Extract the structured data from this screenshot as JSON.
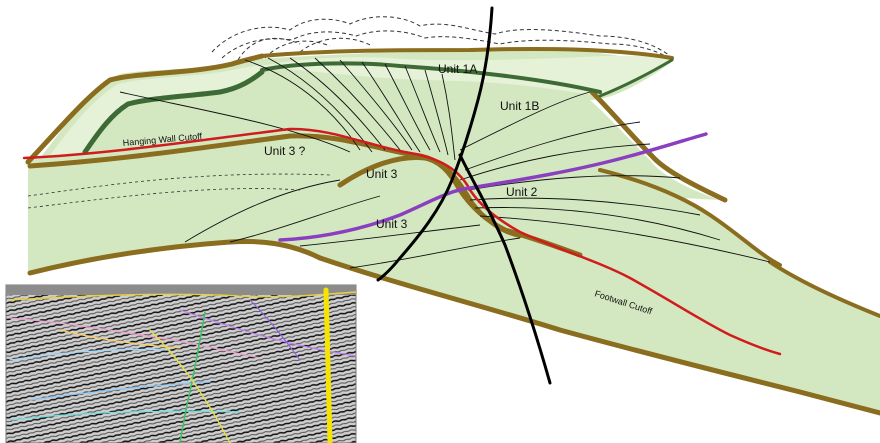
{
  "labels": {
    "unit_1a": "Unit 1A",
    "unit_1b": "Unit 1B",
    "unit_3_query": "Unit 3 ?",
    "unit_3_upper": "Unit 3",
    "unit_3_lower": "Unit 3",
    "unit_2": "Unit 2",
    "hanging_wall_cutoff": "Hanging Wall Cutoff",
    "footwall_cutoff": "Footwall Cutoff"
  },
  "colors": {
    "fill_light_green": "#d3e8c0",
    "fill_pale_green": "#e6f2d8",
    "brown_band": "#8a6d1e",
    "dark_green_band": "#3e6a36",
    "red_cutoff": "#d01c1c",
    "purple_fault": "#8a3fc0",
    "black_fault": "#000000",
    "dashed_outline": "#333333",
    "seismic_highlight_yellow": "#f5e400"
  },
  "icons": {
    "seismic_inset": "seismic-section-image"
  }
}
